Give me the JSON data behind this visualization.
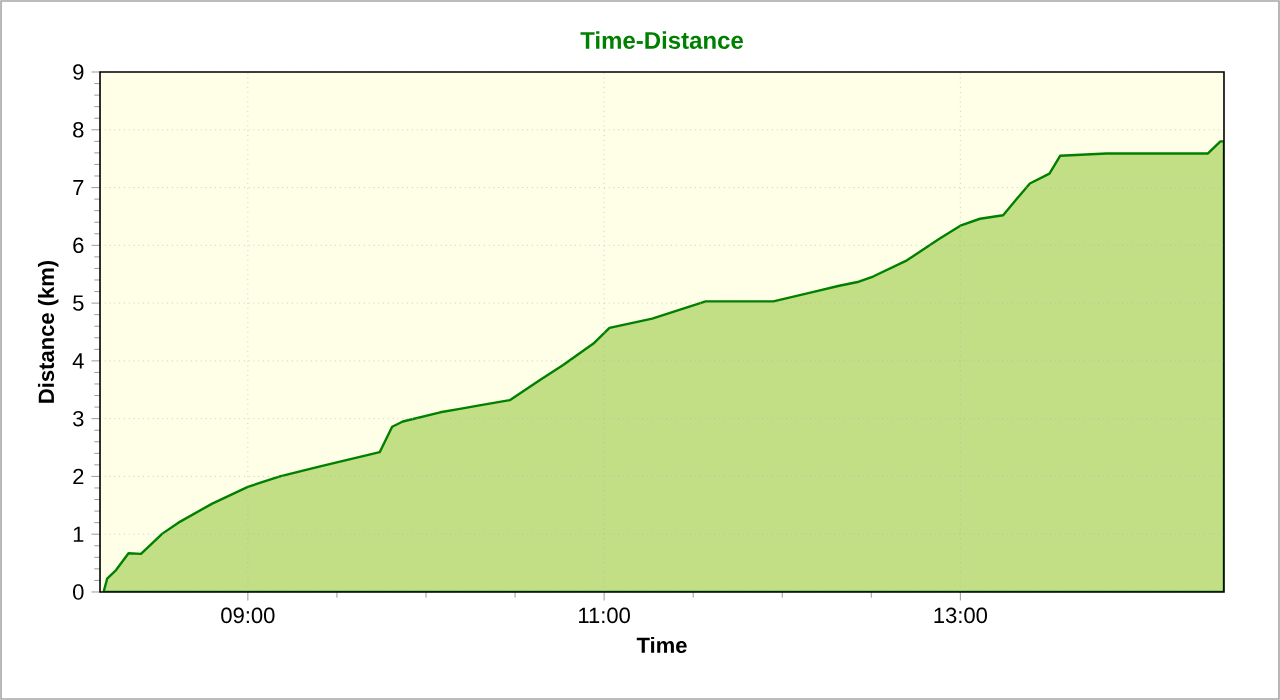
{
  "chart_data": {
    "type": "area",
    "title": "Time-Distance",
    "xlabel": "Time",
    "ylabel": "Distance (km)",
    "x": [
      8.19,
      8.21,
      8.26,
      8.33,
      8.4,
      8.52,
      8.61,
      8.8,
      9.0,
      9.18,
      9.4,
      9.74,
      9.81,
      9.87,
      10.08,
      10.19,
      10.3,
      10.47,
      10.64,
      10.77,
      10.94,
      11.03,
      11.27,
      11.57,
      11.95,
      12.17,
      12.32,
      12.43,
      12.51,
      12.7,
      12.88,
      13.0,
      13.11,
      13.24,
      13.31,
      13.39,
      13.5,
      13.56,
      13.82,
      14.39,
      14.46,
      14.48
    ],
    "values": [
      0,
      0.23,
      0.38,
      0.67,
      0.66,
      1.01,
      1.2,
      1.53,
      1.82,
      2.0,
      2.17,
      2.42,
      2.86,
      2.95,
      3.11,
      3.17,
      3.23,
      3.32,
      3.67,
      3.93,
      4.3,
      4.57,
      4.73,
      5.03,
      5.03,
      5.19,
      5.3,
      5.37,
      5.46,
      5.74,
      6.11,
      6.34,
      6.46,
      6.52,
      6.78,
      7.07,
      7.24,
      7.55,
      7.59,
      7.59,
      7.8,
      7.8
    ],
    "color": "#c2df85",
    "xlim": [
      8.17,
      14.48
    ],
    "ylim": [
      0,
      9
    ],
    "xticks": [
      {
        "value": 9,
        "label": "09:00"
      },
      {
        "value": 11,
        "label": "11:00"
      },
      {
        "value": 13,
        "label": "13:00"
      }
    ],
    "yticks": [
      0,
      1,
      2,
      3,
      4,
      5,
      6,
      7,
      8,
      9
    ],
    "grid": true,
    "line_style": "solid",
    "marker": "none"
  }
}
